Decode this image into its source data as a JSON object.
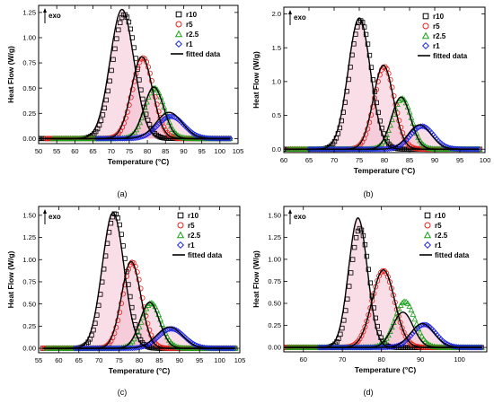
{
  "legend_labels": [
    "r10",
    "r5",
    "r2.5",
    "r1",
    "fitted data"
  ],
  "colors": {
    "r10": "#000000",
    "r5": "#e8211a",
    "r2.5": "#19a319",
    "r1": "#1a22e6",
    "fit_shade": "#f4b5c9"
  },
  "chart_data": [
    {
      "type": "scatter",
      "panel_label": "(a)",
      "xlabel": "Temperature (°C)",
      "ylabel": "Heat Flow (W/g)",
      "annotation": "exo",
      "xlim": [
        50,
        105
      ],
      "ylim": [
        -0.05,
        1.32
      ],
      "xticks": [
        50,
        55,
        60,
        65,
        70,
        75,
        80,
        85,
        90,
        95,
        100,
        105
      ],
      "yticks": [
        0.0,
        0.25,
        0.5,
        0.75,
        1.0,
        1.25
      ],
      "tick_labels_x": [
        "50",
        "55",
        "60",
        "65",
        "70",
        "75",
        "80",
        "85",
        "90",
        "95",
        "100",
        "105"
      ],
      "tick_labels_y": [
        "0.00",
        "0.25",
        "0.50",
        "0.75",
        "1.00",
        "1.25"
      ],
      "series": [
        {
          "name": "r10",
          "marker": "square",
          "peak_x": 73.7,
          "peak_y": 1.23,
          "fit_peak_x": 73.0,
          "fit_peak_y": 1.28,
          "width": 3.3,
          "start": 50,
          "end": 103
        },
        {
          "name": "r5",
          "marker": "circle",
          "peak_x": 78.8,
          "peak_y": 0.8,
          "fit_peak_x": 78.5,
          "fit_peak_y": 0.81,
          "width": 2.9,
          "start": 52,
          "end": 103
        },
        {
          "name": "r2.5",
          "marker": "triangle",
          "peak_x": 82.0,
          "peak_y": 0.5,
          "fit_peak_x": 81.8,
          "fit_peak_y": 0.51,
          "width": 2.7,
          "start": 54,
          "end": 103
        },
        {
          "name": "r1",
          "marker": "diamond",
          "peak_x": 86.5,
          "peak_y": 0.22,
          "fit_peak_x": 86.0,
          "fit_peak_y": 0.26,
          "width": 3.6,
          "start": 66,
          "end": 103
        }
      ]
    },
    {
      "type": "scatter",
      "panel_label": "(b)",
      "xlabel": "Temperature (°C)",
      "ylabel": "Heat Flow (W/g)",
      "annotation": "exo",
      "xlim": [
        60,
        100
      ],
      "ylim": [
        -0.05,
        2.1
      ],
      "xticks": [
        60,
        65,
        70,
        75,
        80,
        85,
        90,
        95,
        100
      ],
      "yticks": [
        0.0,
        0.5,
        1.0,
        1.5,
        2.0
      ],
      "tick_labels_x": [
        "60",
        "65",
        "70",
        "75",
        "80",
        "85",
        "90",
        "95",
        "100"
      ],
      "tick_labels_y": [
        "0.0",
        "0.5",
        "1.0",
        "1.5",
        "2.0"
      ],
      "series": [
        {
          "name": "r10",
          "marker": "square",
          "peak_x": 75.3,
          "peak_y": 1.9,
          "fit_peak_x": 75.0,
          "fit_peak_y": 1.94,
          "width": 2.2,
          "start": 60,
          "end": 99
        },
        {
          "name": "r5",
          "marker": "circle",
          "peak_x": 80.0,
          "peak_y": 1.22,
          "fit_peak_x": 79.8,
          "fit_peak_y": 1.24,
          "width": 2.0,
          "start": 61,
          "end": 99
        },
        {
          "name": "r2.5",
          "marker": "triangle",
          "peak_x": 83.5,
          "peak_y": 0.75,
          "fit_peak_x": 83.3,
          "fit_peak_y": 0.77,
          "width": 1.9,
          "start": 61,
          "end": 99
        },
        {
          "name": "r1",
          "marker": "diamond",
          "peak_x": 87.5,
          "peak_y": 0.34,
          "fit_peak_x": 87.0,
          "fit_peak_y": 0.36,
          "width": 2.3,
          "start": 65,
          "end": 99
        }
      ]
    },
    {
      "type": "scatter",
      "panel_label": "(c)",
      "xlabel": "Temperature (°C)",
      "ylabel": "Heat Flow (W/g)",
      "annotation": "exo",
      "xlim": [
        55,
        105
      ],
      "ylim": [
        -0.05,
        1.6
      ],
      "xticks": [
        55,
        60,
        65,
        70,
        75,
        80,
        85,
        90,
        95,
        100,
        105
      ],
      "yticks": [
        0.0,
        0.25,
        0.5,
        0.75,
        1.0,
        1.25,
        1.5
      ],
      "tick_labels_x": [
        "55",
        "60",
        "65",
        "70",
        "75",
        "80",
        "85",
        "90",
        "95",
        "100",
        "105"
      ],
      "tick_labels_y": [
        "0.00",
        "0.25",
        "0.50",
        "0.75",
        "1.00",
        "1.25",
        "1.50"
      ],
      "series": [
        {
          "name": "r10",
          "marker": "square",
          "peak_x": 74.0,
          "peak_y": 1.52,
          "fit_peak_x": 73.5,
          "fit_peak_y": 1.53,
          "width": 2.7,
          "start": 56,
          "end": 104
        },
        {
          "name": "r5",
          "marker": "circle",
          "peak_x": 78.3,
          "peak_y": 0.97,
          "fit_peak_x": 78.0,
          "fit_peak_y": 0.98,
          "width": 2.4,
          "start": 56,
          "end": 104
        },
        {
          "name": "r2.5",
          "marker": "triangle",
          "peak_x": 83.0,
          "peak_y": 0.51,
          "fit_peak_x": 82.6,
          "fit_peak_y": 0.52,
          "width": 2.4,
          "start": 57,
          "end": 104
        },
        {
          "name": "r1",
          "marker": "diamond",
          "peak_x": 88.0,
          "peak_y": 0.22,
          "fit_peak_x": 87.5,
          "fit_peak_y": 0.24,
          "width": 3.2,
          "start": 64,
          "end": 104
        }
      ]
    },
    {
      "type": "scatter",
      "panel_label": "(d)",
      "xlabel": "Temperature (°C)",
      "ylabel": "Heat Flow (W/g)",
      "annotation": "exo",
      "xlim": [
        55,
        107
      ],
      "ylim": [
        -0.05,
        1.6
      ],
      "xticks": [
        60,
        70,
        80,
        90,
        100
      ],
      "yticks": [
        0.0,
        0.25,
        0.5,
        0.75,
        1.0,
        1.25,
        1.5
      ],
      "tick_labels_x": [
        "60",
        "70",
        "80",
        "90",
        "100"
      ],
      "tick_labels_y": [
        "0.00",
        "0.25",
        "0.50",
        "0.75",
        "1.00",
        "1.25",
        "1.50"
      ],
      "series": [
        {
          "name": "r10",
          "marker": "square",
          "peak_x": 74.5,
          "peak_y": 1.35,
          "fit_peak_x": 74.0,
          "fit_peak_y": 1.47,
          "width": 2.4,
          "start": 55,
          "end": 106
        },
        {
          "name": "r5",
          "marker": "circle",
          "peak_x": 80.5,
          "peak_y": 0.87,
          "fit_peak_x": 80.5,
          "fit_peak_y": 0.88,
          "width": 2.9,
          "start": 55,
          "end": 106
        },
        {
          "name": "r2.5",
          "marker": "triangle",
          "peak_x": 86.0,
          "peak_y": 0.52,
          "fit_peak_x": 85.5,
          "fit_peak_y": 0.4,
          "width": 2.6,
          "start": 56,
          "end": 106
        },
        {
          "name": "r1",
          "marker": "diamond",
          "peak_x": 91.0,
          "peak_y": 0.26,
          "fit_peak_x": 90.5,
          "fit_peak_y": 0.27,
          "width": 3.0,
          "start": 64,
          "end": 106
        }
      ]
    }
  ]
}
